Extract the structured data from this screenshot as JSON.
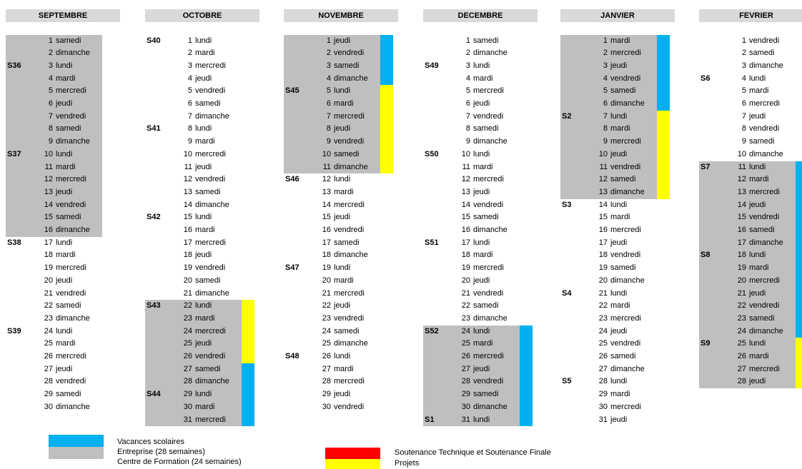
{
  "colors": {
    "vacances": "#00b0f0",
    "entreprise": "#bfbfbf",
    "soutenance": "#ff0000",
    "projets": "#ffff00",
    "header": "#d9d9d9"
  },
  "months": [
    {
      "name": "SEPTEMBRE",
      "start_weekday": 5,
      "days": 30,
      "weeks": {
        "3": "S36",
        "10": "S37",
        "17": "S38",
        "24": "S39"
      },
      "shade": [
        [
          1,
          16
        ]
      ],
      "bars": []
    },
    {
      "name": "OCTOBRE",
      "start_weekday": 0,
      "days": 31,
      "weeks": {
        "1": "S40",
        "8": "S41",
        "15": "S42",
        "22": "S43",
        "29": "S44"
      },
      "shade": [
        [
          22,
          31
        ]
      ],
      "bars": [
        {
          "from": 22,
          "to": 26,
          "color": "yellow"
        },
        {
          "from": 27,
          "to": 31,
          "color": "blue"
        }
      ]
    },
    {
      "name": "NOVEMBRE",
      "start_weekday": 3,
      "days": 30,
      "weeks": {
        "5": "S45",
        "12": "S46",
        "19": "S47",
        "26": "S48"
      },
      "shade": [
        [
          1,
          11
        ]
      ],
      "bars": [
        {
          "from": 1,
          "to": 4,
          "color": "blue"
        },
        {
          "from": 5,
          "to": 11,
          "color": "yellow"
        }
      ]
    },
    {
      "name": "DECEMBRE",
      "start_weekday": 5,
      "days": 31,
      "weeks": {
        "3": "S49",
        "10": "S50",
        "17": "S51",
        "24": "S52",
        "31": "S1"
      },
      "shade": [
        [
          24,
          31
        ]
      ],
      "bars": [
        {
          "from": 24,
          "to": 31,
          "color": "blue"
        }
      ]
    },
    {
      "name": "JANVIER",
      "start_weekday": 1,
      "days": 31,
      "weeks": {
        "7": "S2",
        "14": "S3",
        "21": "S4",
        "28": "S5"
      },
      "shade": [
        [
          1,
          13
        ]
      ],
      "bars": [
        {
          "from": 1,
          "to": 6,
          "color": "blue"
        },
        {
          "from": 7,
          "to": 13,
          "color": "yellow"
        }
      ]
    },
    {
      "name": "FEVRIER",
      "start_weekday": 4,
      "days": 28,
      "weeks": {
        "4": "S6",
        "11": "S7",
        "18": "S8",
        "25": "S9"
      },
      "shade": [
        [
          11,
          28
        ]
      ],
      "bars": [
        {
          "from": 11,
          "to": 24,
          "color": "blue"
        },
        {
          "from": 25,
          "to": 28,
          "color": "yellow"
        }
      ]
    }
  ],
  "weekdays": [
    "lundi",
    "mardi",
    "mercredi",
    "jeudi",
    "vendredi",
    "samedi",
    "dimanche"
  ],
  "legend": {
    "vacances": "Vacances scolaires",
    "entreprise": "Entreprise (28 semaines)",
    "formation": "Centre de Formation (24 semaines)",
    "soutenance": "Soutenance Technique et Soutenance Finale",
    "projets": "Projets"
  }
}
